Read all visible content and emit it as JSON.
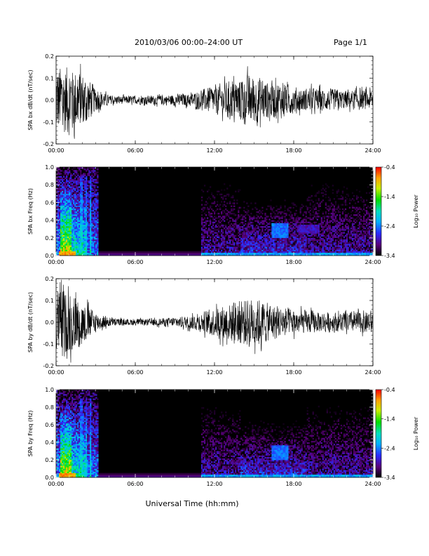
{
  "header": {
    "title": "2010/03/06  00:00–24:00 UT",
    "page": "Page 1/1"
  },
  "xlabel": "Universal Time (hh:mm)",
  "chart_data": [
    {
      "type": "line",
      "ylabel": "SPA bx dB/dt (nT/sec)",
      "xlim": [
        0,
        24
      ],
      "ylim": [
        -0.2,
        0.2
      ],
      "xticks": [
        "00:00",
        "06:00",
        "12:00",
        "18:00",
        "24:00"
      ],
      "yticks": [
        "-0.2",
        "-0.1",
        "0.0",
        "0.1",
        "0.2"
      ],
      "envelope": {
        "x": [
          0,
          0.5,
          1,
          1.5,
          2,
          2.5,
          3,
          4,
          5,
          6,
          7,
          8,
          9,
          10,
          11,
          12,
          13,
          14,
          15,
          16,
          17,
          18,
          19,
          20,
          21,
          22,
          23,
          24
        ],
        "amplitude": [
          0.22,
          0.22,
          0.22,
          0.2,
          0.17,
          0.13,
          0.07,
          0.03,
          0.025,
          0.025,
          0.028,
          0.03,
          0.035,
          0.04,
          0.06,
          0.09,
          0.11,
          0.14,
          0.16,
          0.12,
          0.11,
          0.08,
          0.07,
          0.07,
          0.065,
          0.06,
          0.06,
          0.06
        ]
      }
    },
    {
      "type": "heatmap",
      "ylabel": "SPA bx Freq (Hz)",
      "xlim": [
        0,
        24
      ],
      "ylim": [
        0,
        1.0
      ],
      "xticks": [
        "00:00",
        "06:00",
        "12:00",
        "18:00",
        "24:00"
      ],
      "yticks": [
        "0.0",
        "0.2",
        "0.4",
        "0.6",
        "0.8",
        "1.0"
      ],
      "colorbar": {
        "label": "Log₁₀ Power",
        "range": [
          -3.4,
          -0.4
        ],
        "ticks": [
          "-0.4",
          "-1.4",
          "-2.4",
          "-3.4"
        ]
      }
    },
    {
      "type": "line",
      "ylabel": "SPA by dB/dt (nT/sec)",
      "xlim": [
        0,
        24
      ],
      "ylim": [
        -0.2,
        0.2
      ],
      "xticks": [
        "00:00",
        "06:00",
        "12:00",
        "18:00",
        "24:00"
      ],
      "yticks": [
        "-0.2",
        "-0.1",
        "0.0",
        "0.1",
        "0.2"
      ],
      "envelope": {
        "x": [
          0,
          0.5,
          1,
          1.5,
          2,
          2.5,
          3,
          4,
          5,
          6,
          7,
          8,
          9,
          10,
          11,
          12,
          13,
          14,
          15,
          16,
          17,
          18,
          19,
          20,
          21,
          22,
          23,
          24
        ],
        "amplitude": [
          0.22,
          0.22,
          0.21,
          0.18,
          0.14,
          0.1,
          0.06,
          0.03,
          0.02,
          0.02,
          0.02,
          0.025,
          0.03,
          0.04,
          0.06,
          0.09,
          0.12,
          0.15,
          0.16,
          0.12,
          0.1,
          0.08,
          0.07,
          0.065,
          0.06,
          0.06,
          0.07,
          0.07
        ]
      }
    },
    {
      "type": "heatmap",
      "ylabel": "SPA by Freq (Hz)",
      "xlim": [
        0,
        24
      ],
      "ylim": [
        0,
        1.0
      ],
      "xticks": [
        "00:00",
        "06:00",
        "12:00",
        "18:00",
        "24:00"
      ],
      "yticks": [
        "0.0",
        "0.2",
        "0.4",
        "0.6",
        "0.8",
        "1.0"
      ],
      "colorbar": {
        "label": "Log₁₀ Power",
        "range": [
          -3.4,
          -0.4
        ],
        "ticks": [
          "-0.4",
          "-1.4",
          "-2.4",
          "-3.4"
        ]
      }
    }
  ]
}
